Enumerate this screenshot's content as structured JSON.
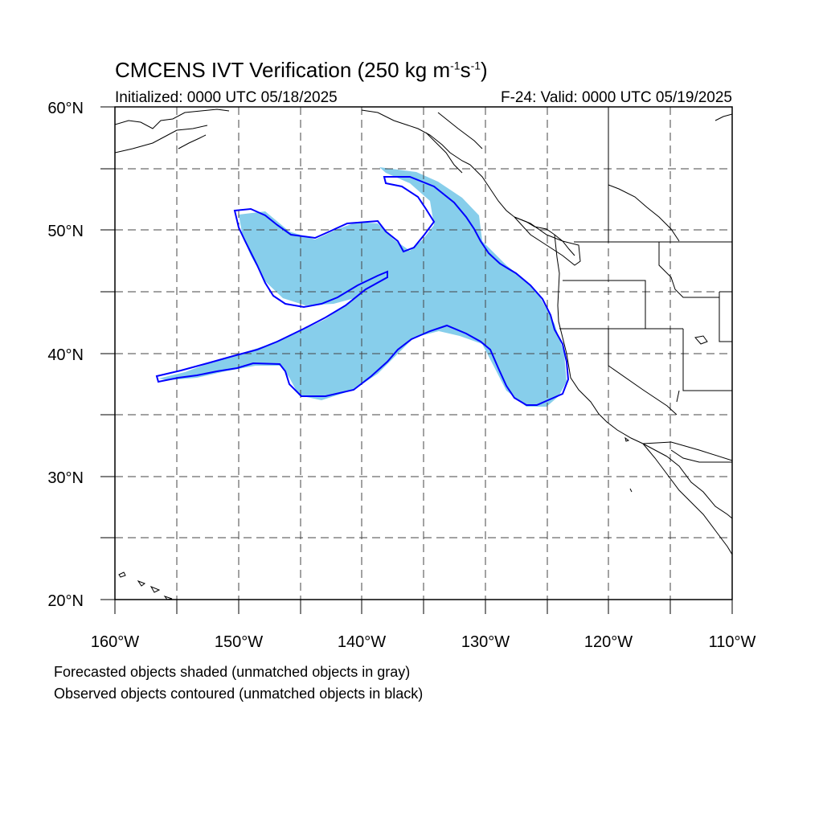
{
  "title": {
    "prefix": "CMCENS IVT Verification (250 kg m",
    "exp1": "-1",
    "mid": "s",
    "exp2": "-1",
    "suffix": ")"
  },
  "initialized": "Initialized: 0000 UTC 05/18/2025",
  "valid": "F-24: Valid: 0000 UTC 05/19/2025",
  "legend": {
    "line1": "Forecasted objects shaded (unmatched objects in gray)",
    "line2": "Observed objects contoured (unmatched objects in black)"
  },
  "map": {
    "lon_range": [
      -160,
      -110
    ],
    "lat_range": [
      20,
      60
    ],
    "lat_labels": [
      "20°N",
      "30°N",
      "40°N",
      "50°N",
      "60°N"
    ],
    "lon_labels": [
      "160°W",
      "150°W",
      "140°W",
      "130°W",
      "120°W",
      "110°W"
    ],
    "gridlines": "dashed every 5°",
    "colors": {
      "forecast_fill": "#87ceeb",
      "observed_contour": "#0000ff",
      "coastline": "#000000"
    }
  }
}
